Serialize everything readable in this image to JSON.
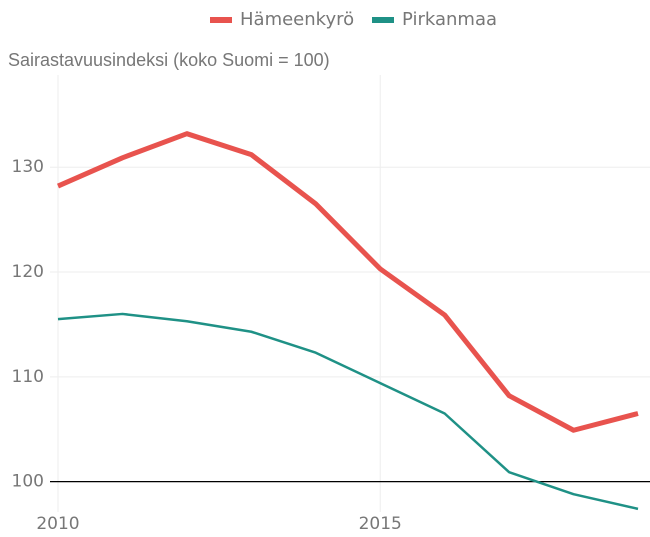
{
  "chart_data": {
    "type": "line",
    "subtitle": "Sairastavuusindeksi (koko Suomi = 100)",
    "x": [
      2010,
      2011,
      2012,
      2013,
      2014,
      2015,
      2016,
      2017,
      2018,
      2019
    ],
    "series": [
      {
        "name": "Hämeenkyrö",
        "color": "#e8534e",
        "width": 5,
        "values": [
          128.2,
          130.9,
          133.2,
          131.2,
          126.5,
          120.3,
          115.9,
          108.2,
          104.9,
          106.5
        ]
      },
      {
        "name": "Pirkanmaa",
        "color": "#1f9186",
        "width": 2.5,
        "values": [
          115.5,
          116.0,
          115.3,
          114.3,
          112.3,
          109.4,
          106.5,
          100.9,
          98.8,
          97.4
        ]
      }
    ],
    "xlim": [
      2010,
      2019
    ],
    "xticks": [
      2010,
      2015
    ],
    "ylim": [
      97.1,
      138.8
    ],
    "yticks": [
      100,
      110,
      120,
      130
    ],
    "reference_line": 100,
    "grid": true,
    "legend": "top"
  }
}
